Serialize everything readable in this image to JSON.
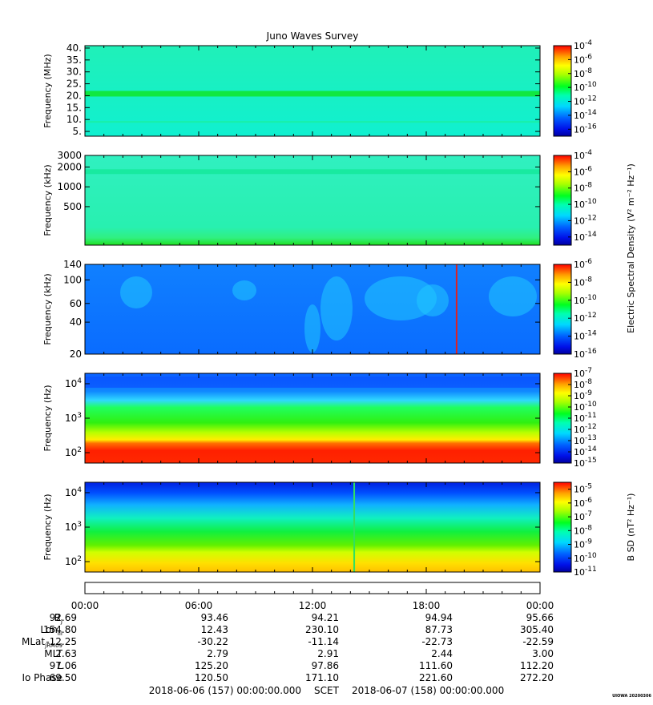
{
  "title": "Juno Waves Survey",
  "colorbar_shared_label": "Electric Spectral Density",
  "colorbar_shared_unit": "(V² m⁻² Hz⁻¹)",
  "panels": [
    {
      "id": "mhz",
      "ylabel": "Frequency (MHz)",
      "yscale": "linear",
      "ylim": [
        3,
        41
      ],
      "yticks": [
        {
          "v": 40,
          "t": "40."
        },
        {
          "v": 35,
          "t": "35."
        },
        {
          "v": 30,
          "t": "30."
        },
        {
          "v": 25,
          "t": "25."
        },
        {
          "v": 20,
          "t": "20."
        },
        {
          "v": 15,
          "t": "15."
        },
        {
          "v": 10,
          "t": "10."
        },
        {
          "v": 5,
          "t": "5."
        }
      ],
      "cbar_exp": [
        -4,
        -6,
        -8,
        -10,
        -12,
        -14,
        -16
      ],
      "cbar_range": [
        -17,
        -4
      ],
      "cbar_label": ""
    },
    {
      "id": "khz-high",
      "ylabel": "Frequency (kHz)",
      "yscale": "log",
      "ylim": [
        130,
        3000
      ],
      "yticks": [
        {
          "v": 3000,
          "t": "3000"
        },
        {
          "v": 2000,
          "t": "2000"
        },
        {
          "v": 1000,
          "t": "1000"
        },
        {
          "v": 500,
          "t": "500"
        }
      ],
      "cbar_exp": [
        -4,
        -6,
        -8,
        -10,
        -12,
        -14
      ],
      "cbar_range": [
        -15,
        -4
      ],
      "cbar_label": ""
    },
    {
      "id": "khz-low",
      "ylabel": "Frequency (kHz)",
      "yscale": "log",
      "ylim": [
        20,
        140
      ],
      "yticks": [
        {
          "v": 140,
          "t": "140"
        },
        {
          "v": 100,
          "t": "100"
        },
        {
          "v": 60,
          "t": "60"
        },
        {
          "v": 40,
          "t": "40"
        },
        {
          "v": 20,
          "t": "20"
        }
      ],
      "cbar_exp": [
        -6,
        -8,
        -10,
        -12,
        -14,
        -16
      ],
      "cbar_range": [
        -16,
        -6
      ],
      "cbar_label": ""
    },
    {
      "id": "hz-e",
      "ylabel": "Frequency (Hz)",
      "yscale": "log",
      "ylim": [
        50,
        20000
      ],
      "yticks": [
        {
          "v": 10000,
          "base": "10",
          "exp": "4"
        },
        {
          "v": 1000,
          "base": "10",
          "exp": "3"
        },
        {
          "v": 100,
          "base": "10",
          "exp": "2"
        }
      ],
      "cbar_exp": [
        -7,
        -8,
        -9,
        -10,
        -11,
        -12,
        -13,
        -14,
        -15
      ],
      "cbar_range": [
        -15,
        -7
      ],
      "cbar_label": ""
    },
    {
      "id": "hz-b",
      "ylabel": "Frequency (Hz)",
      "yscale": "log",
      "ylim": [
        50,
        20000
      ],
      "yticks": [
        {
          "v": 10000,
          "base": "10",
          "exp": "4"
        },
        {
          "v": 1000,
          "base": "10",
          "exp": "3"
        },
        {
          "v": 100,
          "base": "10",
          "exp": "2"
        }
      ],
      "cbar_exp": [
        -5,
        -6,
        -7,
        -8,
        -9,
        -10,
        -11
      ],
      "cbar_range": [
        -11,
        -4.5
      ],
      "cbar_label": "B SD",
      "cbar_unit": "(nT² Hz⁻¹)"
    }
  ],
  "time_axis": {
    "labels": [
      "00:00",
      "06:00",
      "12:00",
      "18:00",
      "00:00"
    ]
  },
  "ephemeris": [
    {
      "label": "R",
      "sub": "J",
      "values": [
        "92.69",
        "93.46",
        "94.21",
        "94.94",
        "95.66"
      ]
    },
    {
      "label": "Lon",
      "sub": "III",
      "values": [
        "154.80",
        "12.43",
        "230.10",
        "87.73",
        "305.40"
      ]
    },
    {
      "label": "MLat",
      "sub": "JRM09",
      "values": [
        "-12.25",
        "-30.22",
        "-11.14",
        "-22.73",
        "-22.59"
      ]
    },
    {
      "label": "MLT",
      "sub": "",
      "values": [
        "2.63",
        "2.79",
        "2.91",
        "2.44",
        "3.00"
      ]
    },
    {
      "label": "L",
      "sub": "",
      "values": [
        "97.06",
        "125.20",
        "97.86",
        "111.60",
        "112.20"
      ]
    },
    {
      "label": "Io Phase",
      "sub": "",
      "values": [
        "69.50",
        "120.50",
        "171.10",
        "221.60",
        "272.20"
      ]
    }
  ],
  "footer": {
    "start": "2018-06-06 (157) 00:00:00.000",
    "center": "SCET",
    "end": "2018-06-07 (158) 00:00:00.000"
  },
  "stamp": "UIOWA 20200306",
  "chart_data": [
    {
      "type": "heatmap",
      "title": "Juno Waves Survey",
      "ylabel": "Frequency (MHz)",
      "ylim": [
        3,
        41
      ],
      "x_hours": [
        0,
        24
      ],
      "description_bands": [
        {
          "freq": 21,
          "log_sd": -12.5
        }
      ],
      "background_log_sd": -13.0
    },
    {
      "type": "heatmap",
      "ylabel": "Frequency (kHz)",
      "ylim": [
        130,
        3000
      ],
      "background_log_sd": -12.8
    },
    {
      "type": "heatmap",
      "ylabel": "Frequency (kHz)",
      "ylim": [
        20,
        140
      ],
      "background_log_sd": -14.6,
      "spike_hour": 19.6
    },
    {
      "type": "heatmap",
      "ylabel": "Frequency (Hz)",
      "ylim": [
        50,
        20000
      ],
      "background_log_sd": -13.5
    },
    {
      "type": "heatmap",
      "ylabel": "Frequency (Hz)",
      "ylim": [
        50,
        20000
      ],
      "background_log_sd": -10.2,
      "spike_hour": 14.2
    }
  ]
}
